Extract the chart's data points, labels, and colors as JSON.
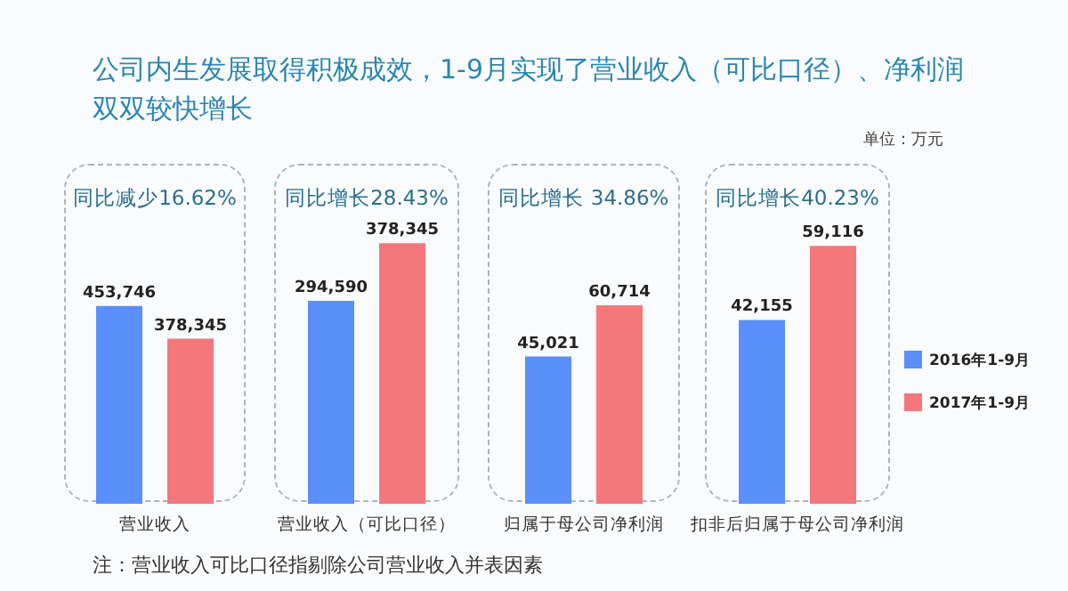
{
  "chart_data": [
    {
      "type": "bar",
      "title": "公司内生发展取得积极成效，1-9月实现了营业收入（可比口径）、净利润双双较快增长",
      "annotations": [
        "同比减少16.62%",
        "单位：万元",
        "注：营业收入可比口径指剔除公司营业收入并表因素"
      ],
      "categories": [
        "营业收入"
      ],
      "series": [
        {
          "color": "#5b8ff9",
          "values": [
            453746
          ],
          "value_labels": [
            "453,746"
          ]
        },
        {
          "color": "#f4777c",
          "values": [
            378345
          ],
          "value_labels": [
            "378,345"
          ]
        }
      ],
      "tick_labels": "x",
      "legend": false
    },
    {
      "type": "bar",
      "annotations": [
        "同比增长28.43%"
      ],
      "categories": [
        "营业收入（可比口径）"
      ],
      "series": [
        {
          "color": "#5b8ff9",
          "values": [
            294590
          ],
          "value_labels": [
            "294,590"
          ]
        },
        {
          "color": "#f4777c",
          "values": [
            378345
          ],
          "value_labels": [
            "378,345"
          ]
        }
      ],
      "tick_labels": "x",
      "legend": false
    },
    {
      "type": "bar",
      "annotations": [
        "同比增长 34.86%"
      ],
      "categories": [
        "归属于母公司净利润"
      ],
      "series": [
        {
          "color": "#5b8ff9",
          "values": [
            45021
          ],
          "value_labels": [
            "45,021"
          ]
        },
        {
          "color": "#f4777c",
          "values": [
            60714
          ],
          "value_labels": [
            "60,714"
          ]
        }
      ],
      "tick_labels": "x",
      "legend": false
    },
    {
      "type": "bar",
      "annotations": [
        "同比增长40.23%"
      ],
      "categories": [
        "扣非后归属于母公司净利润"
      ],
      "series": [
        {
          "name": "2016年1-9月",
          "color": "#5b8ff9",
          "values": [
            42155
          ],
          "value_labels": [
            "42,155"
          ]
        },
        {
          "name": "2017年1-9月",
          "color": "#f4777c",
          "values": [
            59116
          ],
          "value_labels": [
            "59,116"
          ]
        }
      ],
      "tick_labels": "x",
      "legend": "right"
    }
  ]
}
